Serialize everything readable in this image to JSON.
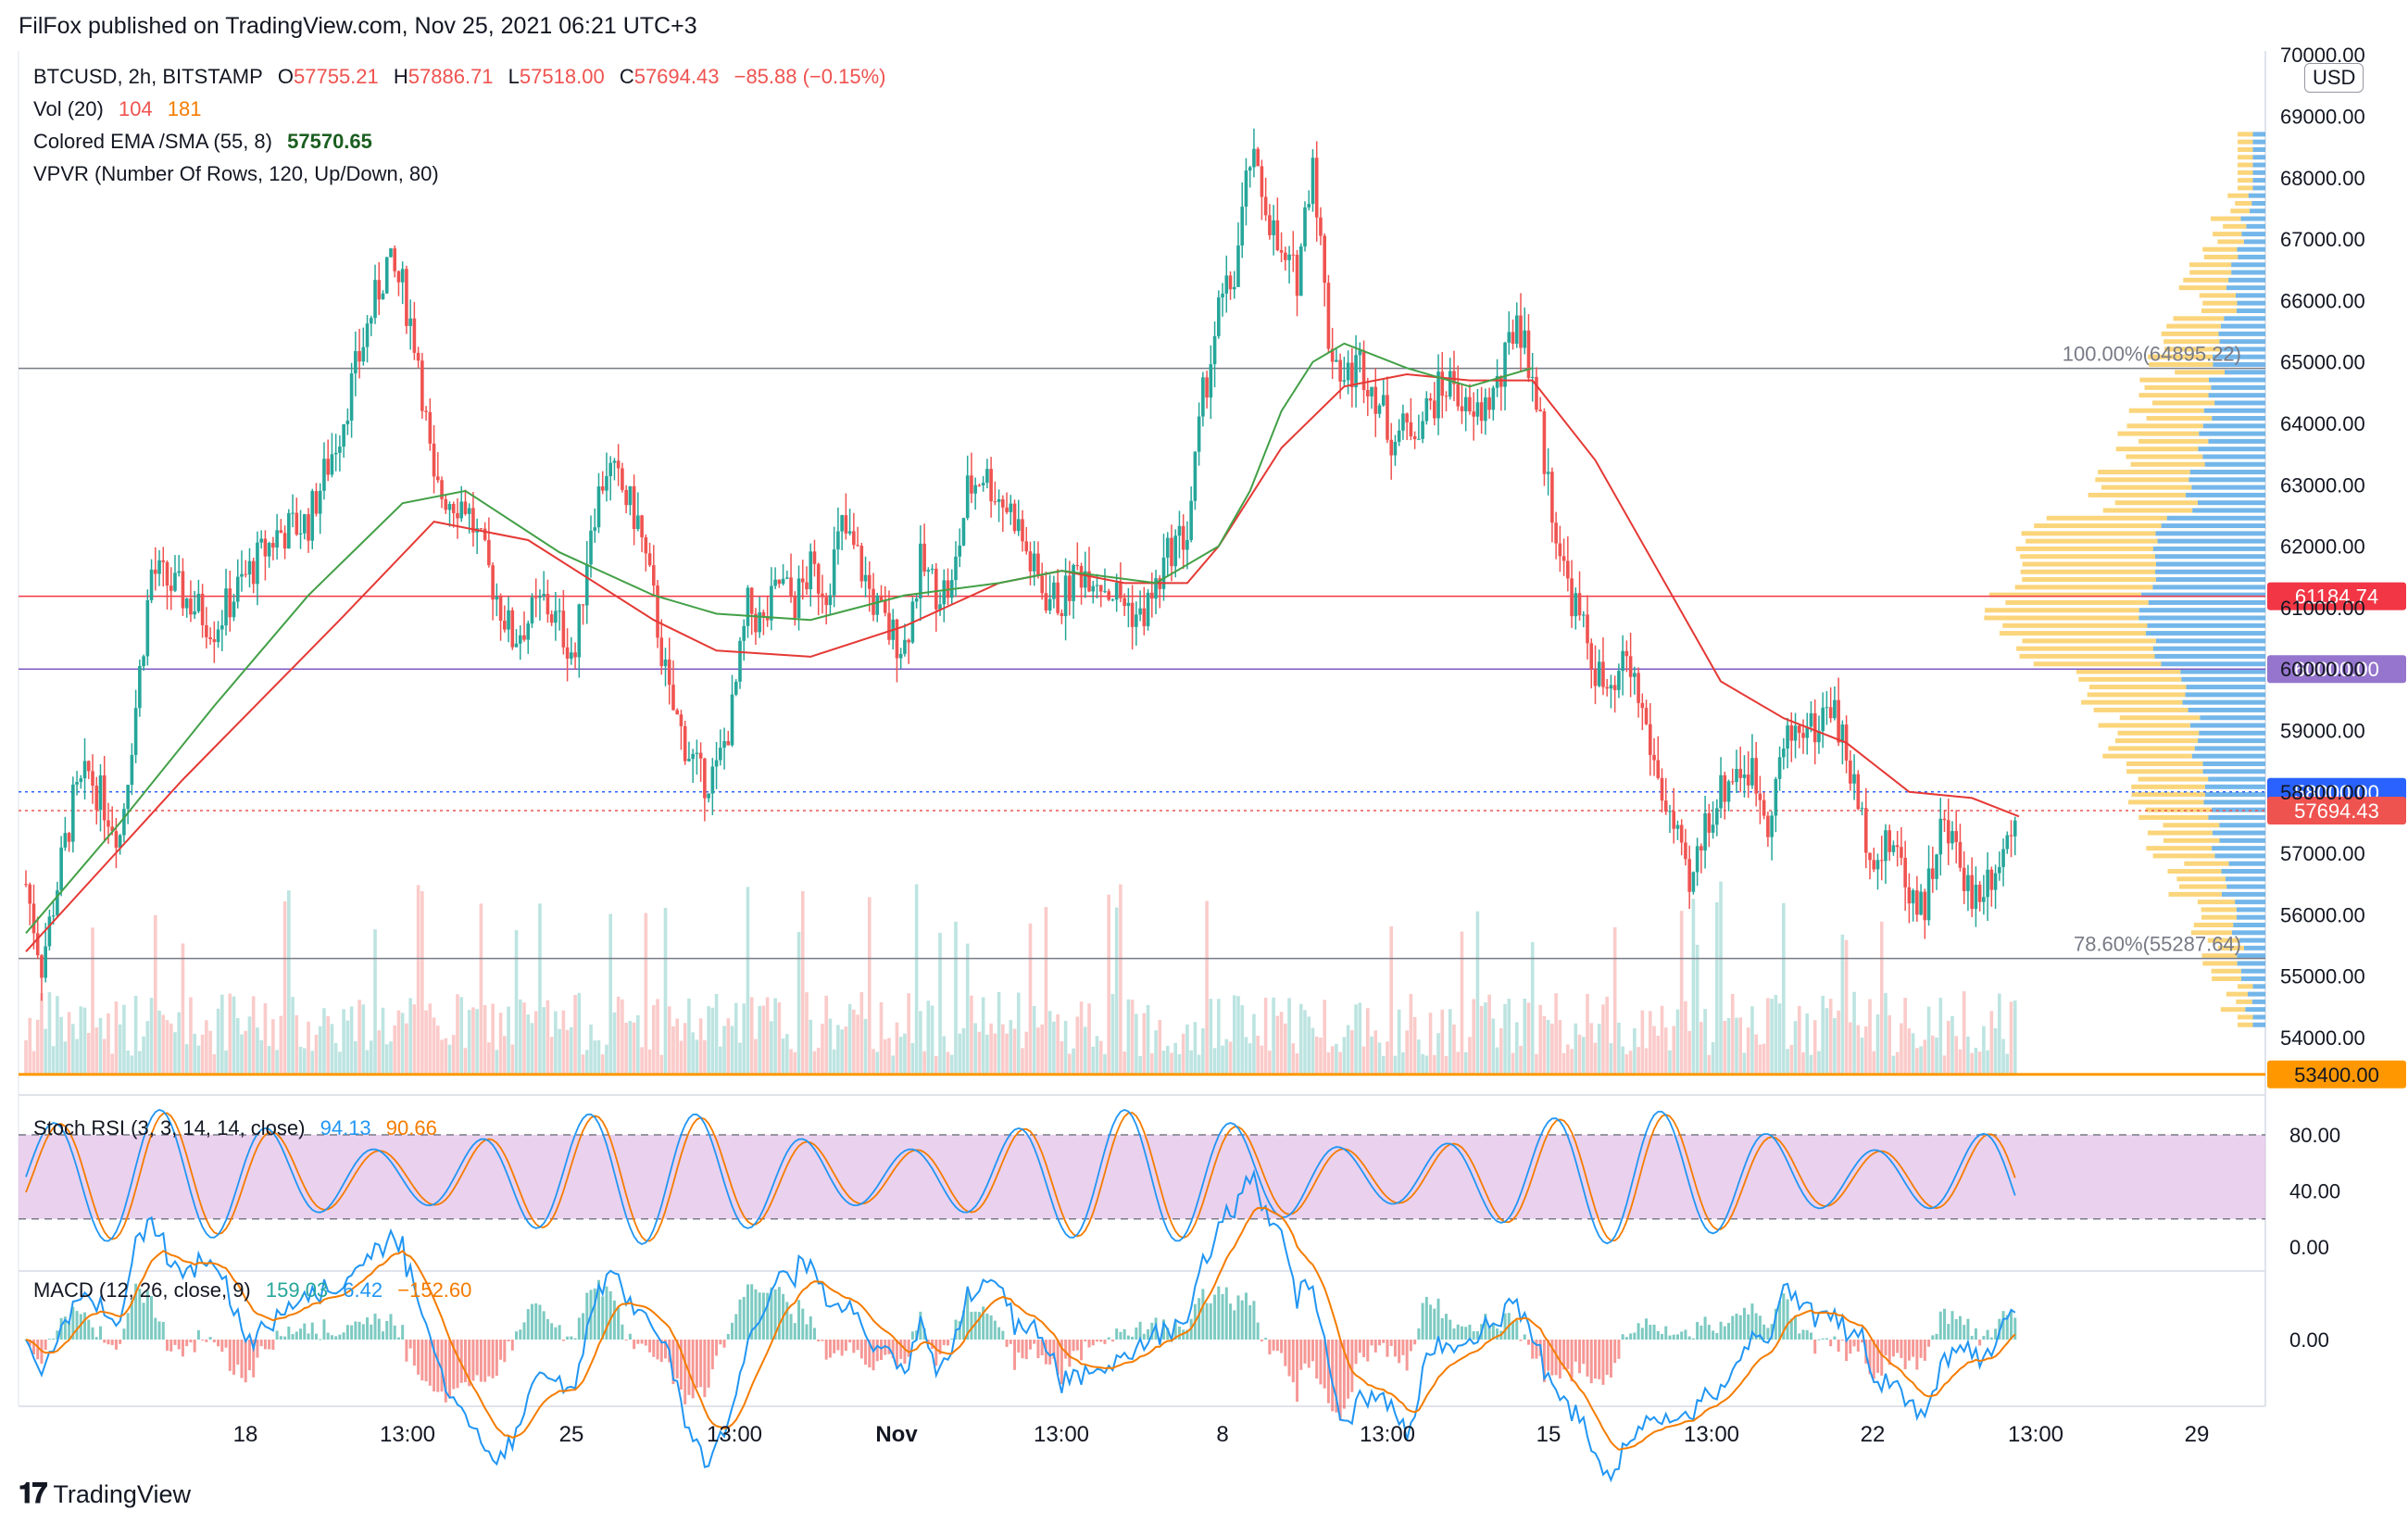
{
  "header": {
    "publish_line": "FilFox published on TradingView.com, Nov 25, 2021 06:21 UTC+3",
    "currency_badge": "USD"
  },
  "legend": {
    "symbol": "BTCUSD, 2h, BITSTAMP",
    "open_label": "O",
    "open": "57755.21",
    "high_label": "H",
    "high": "57886.71",
    "low_label": "L",
    "low": "57518.00",
    "close_label": "C",
    "close": "57694.43",
    "change": "−85.88 (−0.15%)",
    "vol_label": "Vol (20)",
    "vol_value": "104",
    "vol_ma": "181",
    "ema_label": "Colored EMA /SMA (55, 8)",
    "ema_value": "57570.65",
    "vpvr_label": "VPVR (Number Of Rows, 120, Up/Down, 80)"
  },
  "colors": {
    "up": "#26a69a",
    "down": "#ef5350",
    "ema": "#e53935",
    "sma": "#43a047",
    "vp_up": "#5aa9e6",
    "vp_down": "#f9c74f",
    "level_red": "#f23645",
    "level_purple": "#7e57c2",
    "level_blue": "#2962ff",
    "level_orange": "#ff9800",
    "stoch_k": "#2196f3",
    "stoch_d": "#f57c00",
    "stoch_band": "#e1bee7",
    "macd_line": "#2196f3",
    "signal_line": "#f57c00"
  },
  "stoch": {
    "label": "Stoch RSI (3, 3, 14, 14, close)",
    "k": "94.13",
    "d": "90.66"
  },
  "macd": {
    "label": "MACD (12, 26, close, 9)",
    "hist": "159.03",
    "macd": "6.42",
    "signal": "−152.60"
  },
  "footer": {
    "logo": "TradingView"
  },
  "chart_data": {
    "type": "candlestick",
    "symbol": "BTCUSD",
    "interval": "2h",
    "y_range": [
      53400,
      70000
    ],
    "price_ticks": [
      "70000.00",
      "69000.00",
      "68000.00",
      "67000.00",
      "66000.00",
      "65000.00",
      "64000.00",
      "63000.00",
      "62000.00",
      "61000.00",
      "60000.00",
      "59000.00",
      "58000.00",
      "57000.00",
      "56000.00",
      "55000.00",
      "54000.00"
    ],
    "x_ticks": [
      "18",
      "13:00",
      "25",
      "13:00",
      "Nov",
      "13:00",
      "8",
      "13:00",
      "15",
      "13:00",
      "22",
      "13:00",
      "29"
    ],
    "series_path_points": [
      [
        0,
        56500
      ],
      [
        1,
        55200
      ],
      [
        3,
        57800
      ],
      [
        4,
        58300
      ],
      [
        6,
        57300
      ],
      [
        7,
        59400
      ],
      [
        8,
        61600
      ],
      [
        10,
        61200
      ],
      [
        12,
        60700
      ],
      [
        14,
        61500
      ],
      [
        16,
        62200
      ],
      [
        18,
        62400
      ],
      [
        20,
        63900
      ],
      [
        22,
        65800
      ],
      [
        23,
        66600
      ],
      [
        24,
        66200
      ],
      [
        25,
        65100
      ],
      [
        26,
        62900
      ],
      [
        28,
        62700
      ],
      [
        30,
        61200
      ],
      [
        31,
        60500
      ],
      [
        33,
        61100
      ],
      [
        34,
        60700
      ],
      [
        35,
        60200
      ],
      [
        36,
        62400
      ],
      [
        37,
        63300
      ],
      [
        38,
        62900
      ],
      [
        39,
        62400
      ],
      [
        40,
        61100
      ],
      [
        41,
        59500
      ],
      [
        42,
        58800
      ],
      [
        43,
        58200
      ],
      [
        44,
        58300
      ],
      [
        45,
        59300
      ],
      [
        46,
        61000
      ],
      [
        47,
        60700
      ],
      [
        48,
        61400
      ],
      [
        49,
        61100
      ],
      [
        50,
        61600
      ],
      [
        51,
        61300
      ],
      [
        52,
        62300
      ],
      [
        53,
        61800
      ],
      [
        54,
        61100
      ],
      [
        55,
        60600
      ],
      [
        56,
        60400
      ],
      [
        57,
        61700
      ],
      [
        58,
        61300
      ],
      [
        59,
        61300
      ],
      [
        60,
        62900
      ],
      [
        61,
        63200
      ],
      [
        62,
        62800
      ],
      [
        63,
        62500
      ],
      [
        64,
        61700
      ],
      [
        65,
        61200
      ],
      [
        66,
        61100
      ],
      [
        67,
        61600
      ],
      [
        68,
        61600
      ],
      [
        69,
        61300
      ],
      [
        70,
        61100
      ],
      [
        71,
        60800
      ],
      [
        72,
        61300
      ],
      [
        73,
        62000
      ],
      [
        74,
        62200
      ],
      [
        75,
        64400
      ],
      [
        76,
        65800
      ],
      [
        77,
        66400
      ],
      [
        78,
        68300
      ],
      [
        79,
        67600
      ],
      [
        80,
        66600
      ],
      [
        81,
        66400
      ],
      [
        82,
        68400
      ],
      [
        83,
        65400
      ],
      [
        84,
        64700
      ],
      [
        85,
        65000
      ],
      [
        86,
        64500
      ],
      [
        87,
        63800
      ],
      [
        88,
        63900
      ],
      [
        89,
        64100
      ],
      [
        90,
        64500
      ],
      [
        91,
        64700
      ],
      [
        92,
        64000
      ],
      [
        93,
        64300
      ],
      [
        94,
        64700
      ],
      [
        95,
        65800
      ],
      [
        96,
        64800
      ],
      [
        97,
        63000
      ],
      [
        98,
        61600
      ],
      [
        99,
        60800
      ],
      [
        100,
        60000
      ],
      [
        101,
        59400
      ],
      [
        102,
        60200
      ],
      [
        103,
        59300
      ],
      [
        104,
        58200
      ],
      [
        105,
        57400
      ],
      [
        106,
        56300
      ],
      [
        107,
        57500
      ],
      [
        108,
        58000
      ],
      [
        109,
        58400
      ],
      [
        110,
        58300
      ],
      [
        111,
        57600
      ],
      [
        112,
        58700
      ],
      [
        113,
        59100
      ],
      [
        114,
        59000
      ],
      [
        115,
        59500
      ],
      [
        116,
        58600
      ],
      [
        117,
        57500
      ],
      [
        118,
        56900
      ],
      [
        119,
        57200
      ],
      [
        120,
        56400
      ],
      [
        121,
        56200
      ],
      [
        122,
        57400
      ],
      [
        123,
        57100
      ],
      [
        124,
        56300
      ],
      [
        125,
        56600
      ],
      [
        126,
        57100
      ],
      [
        127,
        57700
      ]
    ],
    "ema_points": [
      [
        0,
        55400
      ],
      [
        10,
        58200
      ],
      [
        20,
        60800
      ],
      [
        26,
        62400
      ],
      [
        32,
        62100
      ],
      [
        40,
        60800
      ],
      [
        44,
        60300
      ],
      [
        50,
        60200
      ],
      [
        56,
        60700
      ],
      [
        62,
        61400
      ],
      [
        66,
        61600
      ],
      [
        70,
        61400
      ],
      [
        74,
        61400
      ],
      [
        76,
        62000
      ],
      [
        80,
        63600
      ],
      [
        84,
        64600
      ],
      [
        88,
        64800
      ],
      [
        92,
        64700
      ],
      [
        96,
        64700
      ],
      [
        100,
        63400
      ],
      [
        104,
        61600
      ],
      [
        108,
        59800
      ],
      [
        112,
        59200
      ],
      [
        116,
        58800
      ],
      [
        120,
        58000
      ],
      [
        124,
        57900
      ],
      [
        127,
        57600
      ]
    ],
    "sma_points": [
      [
        0,
        55700
      ],
      [
        6,
        57500
      ],
      [
        12,
        59400
      ],
      [
        18,
        61200
      ],
      [
        24,
        62700
      ],
      [
        28,
        62900
      ],
      [
        34,
        61900
      ],
      [
        40,
        61200
      ],
      [
        44,
        60900
      ],
      [
        50,
        60800
      ],
      [
        56,
        61200
      ],
      [
        62,
        61400
      ],
      [
        66,
        61600
      ],
      [
        72,
        61400
      ],
      [
        76,
        62000
      ],
      [
        78,
        62900
      ],
      [
        80,
        64200
      ],
      [
        82,
        65000
      ],
      [
        84,
        65300
      ],
      [
        88,
        64900
      ],
      [
        92,
        64600
      ],
      [
        96,
        64900
      ]
    ],
    "horizontal_levels": [
      {
        "label": "100.00%(64895.22)",
        "price": 64895.22,
        "kind": "fib"
      },
      {
        "label": "78.60%(55287.64)",
        "price": 55287.64,
        "kind": "fib"
      },
      {
        "label": "61184.74",
        "price": 61184.74,
        "kind": "red"
      },
      {
        "label": "60000.00",
        "price": 60000.0,
        "kind": "purple"
      },
      {
        "label": "58000.00",
        "price": 58000.0,
        "kind": "blue"
      },
      {
        "label": "57694.43",
        "price": 57694.43,
        "kind": "last"
      },
      {
        "label": "53400.00",
        "price": 53400.0,
        "kind": "orange"
      }
    ],
    "stoch_ticks": [
      "80.00",
      "40.00",
      "0.00"
    ],
    "macd_ticks": [
      "0.00"
    ]
  }
}
